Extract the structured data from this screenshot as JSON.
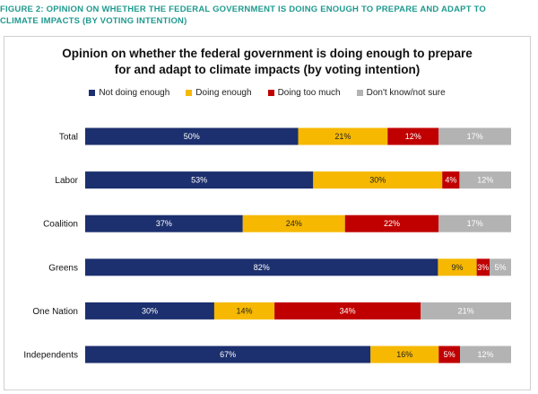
{
  "figure_caption_line1": "Figure 2: Opinion on whether the federal government is doing enough to prepare and adapt to",
  "figure_caption_line2": "climate impacts (by voting intention)",
  "chart_data": {
    "type": "bar",
    "orientation": "horizontal",
    "stacked": true,
    "percent": true,
    "title_line1": "Opinion on whether the federal government is doing enough to prepare",
    "title_line2": "for and adapt to climate impacts (by voting intention)",
    "legend_position": "top",
    "categories": [
      "Total",
      "Labor",
      "Coalition",
      "Greens",
      "One Nation",
      "Independents"
    ],
    "series": [
      {
        "name": "Not doing enough",
        "color": "#1c2f6e",
        "label_color": "#ffffff",
        "values": [
          50,
          53,
          37,
          82,
          30,
          67
        ]
      },
      {
        "name": "Doing enough",
        "color": "#f6b800",
        "label_color": "#222222",
        "values": [
          21,
          30,
          24,
          9,
          14,
          16
        ]
      },
      {
        "name": "Doing too much",
        "color": "#c00000",
        "label_color": "#ffffff",
        "values": [
          12,
          4,
          22,
          3,
          34,
          5
        ]
      },
      {
        "name": "Don't know/not sure",
        "color": "#b3b3b3",
        "label_color": "#ffffff",
        "values": [
          17,
          12,
          17,
          5,
          21,
          12
        ]
      }
    ],
    "value_suffix": "%"
  }
}
